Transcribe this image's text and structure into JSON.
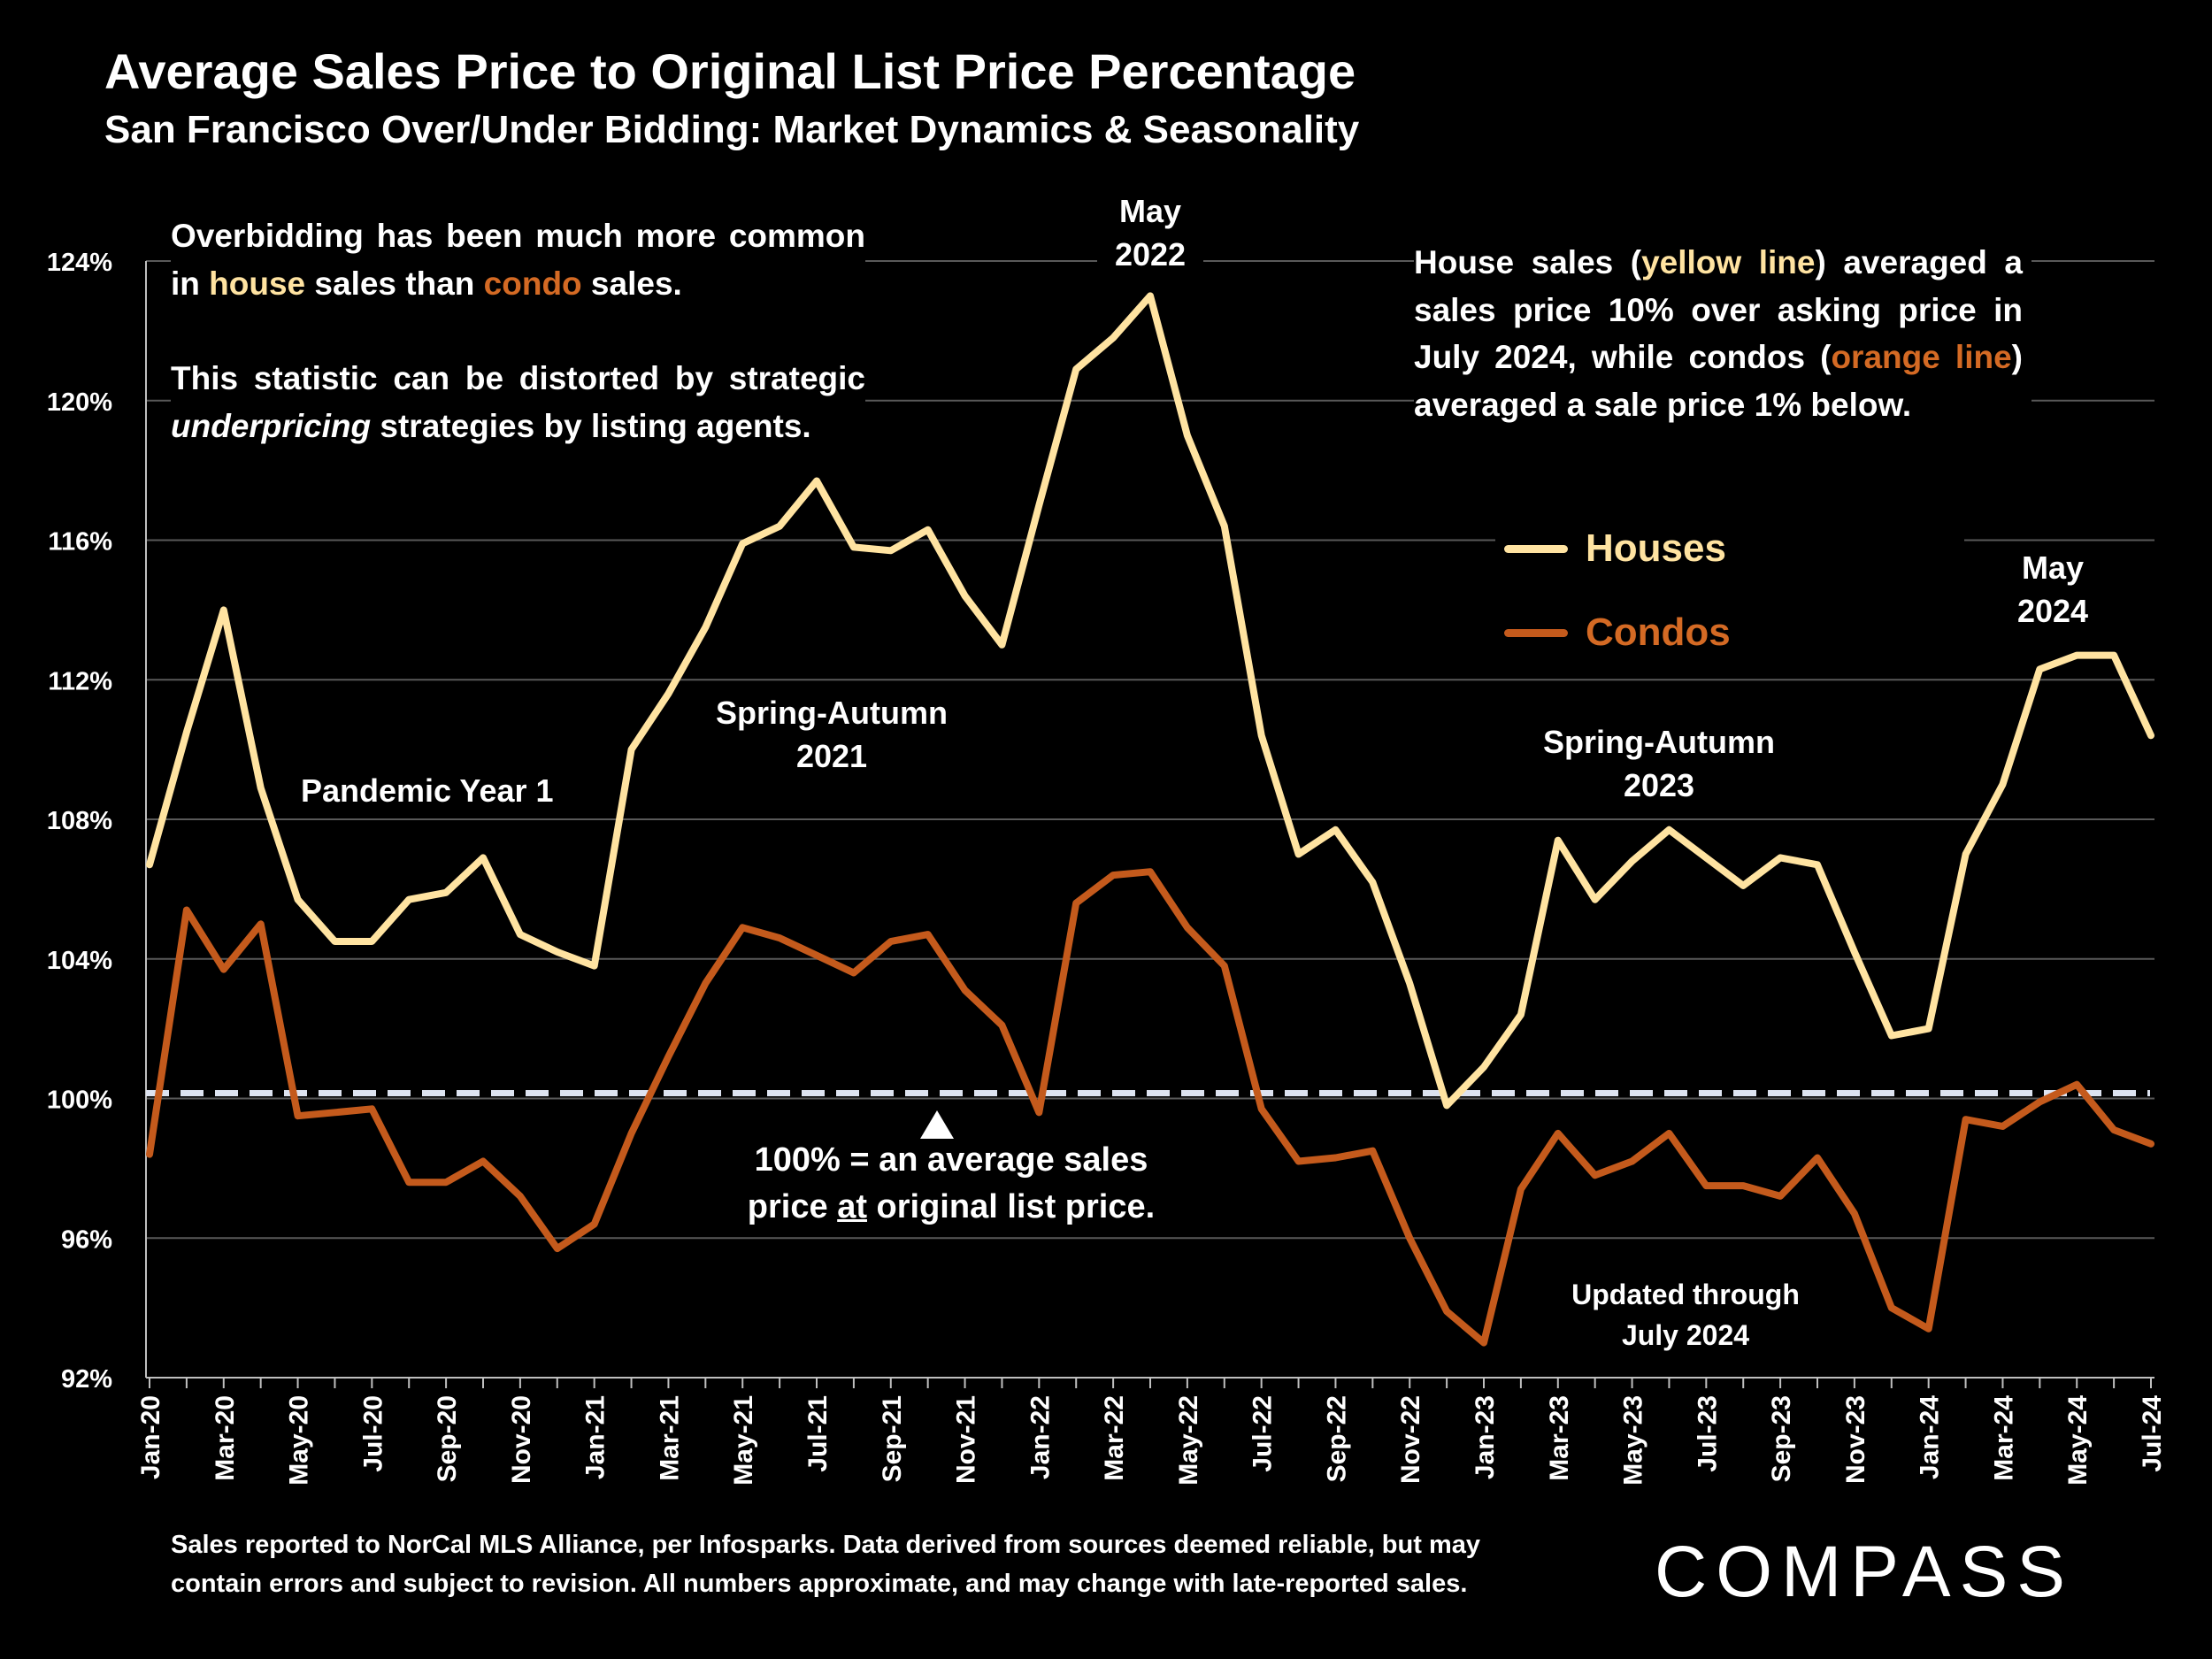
{
  "title": "Average Sales Price to Original List Price Percentage",
  "subtitle": "San Francisco Over/Under Bidding: Market Dynamics & Seasonality",
  "notes": {
    "left_line1_a": "Overbidding has been much more common in ",
    "left_line1_house": "house",
    "left_line1_b": " sales than ",
    "left_line1_condo": "condo",
    "left_line1_c": " sales.",
    "left_line2_a": "This statistic can be distorted by strategic ",
    "left_line2_em": "underpricing",
    "left_line2_b": " strategies by listing agents.",
    "right_a": "House sales (",
    "right_yellow": "yellow line",
    "right_b": ") averaged a sales price 10% over asking price in July 2024, while condos (",
    "right_orange": "orange line",
    "right_c": ") averaged a sale price 1% below."
  },
  "annotations": {
    "may2022": [
      "May",
      "2022"
    ],
    "may2024": [
      "May",
      "2024"
    ],
    "spring2021": [
      "Spring-Autumn",
      "2021"
    ],
    "spring2023": [
      "Spring-Autumn",
      "2023"
    ],
    "pandemic": "Pandemic Year 1",
    "updated": [
      "Updated through",
      "July 2024"
    ],
    "hundred_a": "100% = an average sales",
    "hundred_b": "price ",
    "hundred_at": "at",
    "hundred_c": " original list price."
  },
  "footer": [
    "Sales reported to NorCal MLS Alliance, per Infosparks. Data derived from sources deemed reliable, but may",
    "contain errors and subject to revision. All numbers approximate, and may change with late-reported sales."
  ],
  "logo": "COMPASS",
  "colors": {
    "houses": "#ffe3a1",
    "condos": "#c45a1c",
    "reference": "#dde3f0",
    "grid": "#595959"
  },
  "chart_data": {
    "type": "line",
    "ylim": [
      92,
      124
    ],
    "yticks": [
      "92%",
      "96%",
      "100%",
      "104%",
      "108%",
      "112%",
      "116%",
      "120%",
      "124%"
    ],
    "ytick_values": [
      92,
      96,
      100,
      104,
      108,
      112,
      116,
      120,
      124
    ],
    "xtick_labels": [
      "Jan-20",
      "Mar-20",
      "May-20",
      "Jul-20",
      "Sep-20",
      "Nov-20",
      "Jan-21",
      "Mar-21",
      "May-21",
      "Jul-21",
      "Sep-21",
      "Nov-21",
      "Jan-22",
      "Mar-22",
      "May-22",
      "Jul-22",
      "Sep-22",
      "Nov-22",
      "Jan-23",
      "Mar-23",
      "May-23",
      "Jul-23",
      "Sep-23",
      "Nov-23",
      "Jan-24",
      "Mar-24",
      "May-24",
      "Jul-24"
    ],
    "x": [
      "Jan-20",
      "Feb-20",
      "Mar-20",
      "Apr-20",
      "May-20",
      "Jun-20",
      "Jul-20",
      "Aug-20",
      "Sep-20",
      "Oct-20",
      "Nov-20",
      "Dec-20",
      "Jan-21",
      "Feb-21",
      "Mar-21",
      "Apr-21",
      "May-21",
      "Jun-21",
      "Jul-21",
      "Aug-21",
      "Sep-21",
      "Oct-21",
      "Nov-21",
      "Dec-21",
      "Jan-22",
      "Feb-22",
      "Mar-22",
      "Apr-22",
      "May-22",
      "Jun-22",
      "Jul-22",
      "Aug-22",
      "Sep-22",
      "Oct-22",
      "Nov-22",
      "Dec-22",
      "Jan-23",
      "Feb-23",
      "Mar-23",
      "Apr-23",
      "May-23",
      "Jun-23",
      "Jul-23",
      "Aug-23",
      "Sep-23",
      "Oct-23",
      "Nov-23",
      "Dec-23",
      "Jan-24",
      "Feb-24",
      "Mar-24",
      "Apr-24",
      "May-24",
      "Jun-24",
      "Jul-24"
    ],
    "reference_line": 100,
    "series": [
      {
        "name": "Houses",
        "values": [
          106.7,
          110.5,
          114.0,
          108.9,
          105.7,
          104.5,
          104.5,
          105.7,
          105.9,
          106.9,
          104.7,
          104.2,
          103.8,
          110.0,
          111.6,
          113.5,
          115.9,
          116.4,
          117.7,
          115.8,
          115.7,
          116.3,
          114.4,
          113.0,
          117.0,
          120.9,
          121.8,
          123.0,
          119.0,
          116.4,
          110.4,
          107.0,
          107.7,
          106.2,
          103.3,
          99.8,
          100.9,
          102.4,
          107.4,
          105.7,
          106.8,
          107.7,
          106.9,
          106.1,
          106.9,
          106.7,
          104.2,
          101.8,
          102.0,
          107.0,
          109.0,
          112.3,
          112.7,
          112.7,
          110.4
        ]
      },
      {
        "name": "Condos",
        "values": [
          98.4,
          105.4,
          103.7,
          105.0,
          99.5,
          99.6,
          99.7,
          97.6,
          97.6,
          98.2,
          97.2,
          95.7,
          96.4,
          99.0,
          101.2,
          103.3,
          104.9,
          104.6,
          104.1,
          103.6,
          104.5,
          104.7,
          103.1,
          102.1,
          99.6,
          105.6,
          106.4,
          106.5,
          104.9,
          103.8,
          99.7,
          98.2,
          98.3,
          98.5,
          96.0,
          93.9,
          93.0,
          97.4,
          99.0,
          97.8,
          98.2,
          99.0,
          97.5,
          97.5,
          97.2,
          98.3,
          96.7,
          94.0,
          93.4,
          99.4,
          99.2,
          99.9,
          100.4,
          99.1,
          98.7
        ]
      }
    ]
  }
}
